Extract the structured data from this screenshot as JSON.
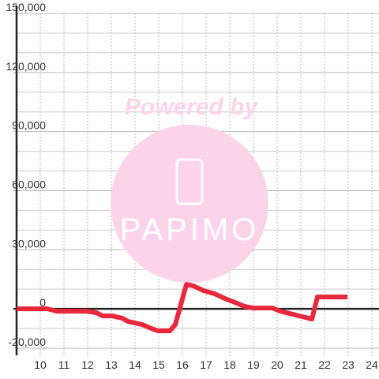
{
  "chart_data": {
    "type": "line",
    "annotations": [
      "Powered by",
      "PAPIMO"
    ],
    "x": [
      9,
      10.3,
      10.7,
      11.97,
      12.37,
      12.63,
      13.03,
      13.47,
      13.7,
      14.3,
      14.7,
      14.97,
      15.47,
      15.7,
      16.17,
      16.47,
      16.9,
      17.37,
      17.8,
      18.23,
      18.63,
      18.97,
      19.8,
      20.13,
      20.8,
      21.47,
      21.7,
      22.97
    ],
    "series": [
      {
        "color": "#e8283c",
        "values": [
          0,
          0,
          -1200,
          -1200,
          -2000,
          -3600,
          -3600,
          -4800,
          -6400,
          -8000,
          -10000,
          -11200,
          -11200,
          -8000,
          12400,
          11600,
          9200,
          7600,
          5200,
          3200,
          1200,
          400,
          400,
          -1200,
          -3200,
          -5200,
          6000,
          6000
        ]
      }
    ],
    "xlim": [
      9,
      24.4
    ],
    "xticks": [
      10,
      11,
      12,
      13,
      14,
      15,
      16,
      17,
      18,
      19,
      20,
      21,
      22,
      23,
      24
    ],
    "ylim": [
      -20000,
      150000
    ],
    "yticks": [
      {
        "value": -20000,
        "label": "-20,000"
      },
      0,
      {
        "value": 30000,
        "label": "30,000"
      },
      {
        "value": 60000,
        "label": "60,000"
      },
      {
        "value": 90000,
        "label": "90,000"
      },
      {
        "value": 120000,
        "label": "120,000"
      },
      {
        "value": 150000,
        "label": "150,000"
      }
    ],
    "yminor": [
      -10000,
      10000,
      20000,
      40000,
      50000,
      70000,
      80000,
      100000,
      110000,
      130000,
      140000
    ],
    "grid": true
  }
}
